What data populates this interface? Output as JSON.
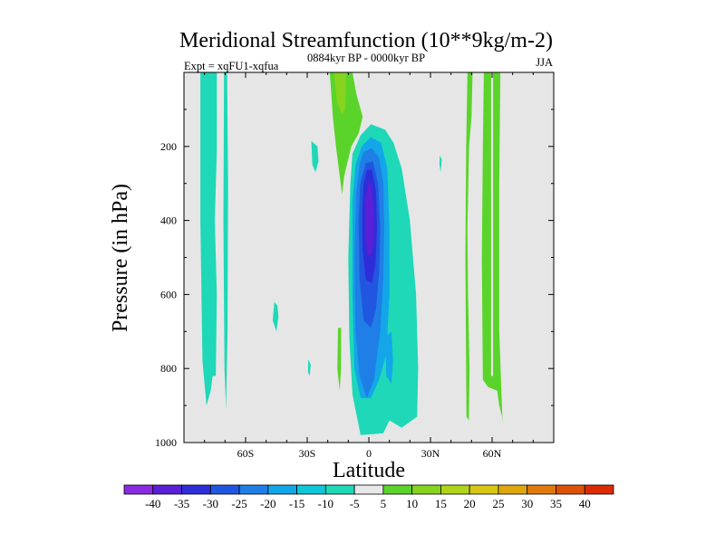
{
  "chart_data": {
    "type": "heatmap",
    "title": "Meridional Streamfunction (10**9kg/m-2)",
    "subtitle_left": "Expt = xqFU1-xqfua",
    "subtitle_center": "0884kyr BP - 0000kyr BP",
    "subtitle_right": "JJA",
    "xlabel": "Latitude",
    "ylabel": "Pressure (in hPa)",
    "xlim": [
      -90,
      90
    ],
    "ylim": [
      1000,
      0
    ],
    "x_ticks": [
      {
        "value": -60,
        "label": "60S"
      },
      {
        "value": -30,
        "label": "30S"
      },
      {
        "value": 0,
        "label": "0"
      },
      {
        "value": 30,
        "label": "30N"
      },
      {
        "value": 60,
        "label": "60N"
      }
    ],
    "y_ticks": [
      {
        "value": 200,
        "label": "200"
      },
      {
        "value": 400,
        "label": "400"
      },
      {
        "value": 600,
        "label": "600"
      },
      {
        "value": 800,
        "label": "800"
      },
      {
        "value": 1000,
        "label": "1000"
      }
    ],
    "background_color": "#e6e6e6",
    "colorbar": {
      "labels": [
        "-40",
        "-35",
        "-30",
        "-25",
        "-20",
        "-15",
        "-10",
        "-5",
        "5",
        "10",
        "15",
        "20",
        "25",
        "30",
        "35",
        "40"
      ],
      "colors": [
        "#8a2be2",
        "#5a1fd6",
        "#2e2ed9",
        "#2157e0",
        "#1f7fe6",
        "#13a6e8",
        "#10c6d8",
        "#1ed8b8",
        "#e8e8e8",
        "#5ad42a",
        "#86d41e",
        "#b0d41a",
        "#d8c814",
        "#e0a60f",
        "#e07a0c",
        "#dd5208",
        "#dc2c06"
      ]
    },
    "contour_regions": [
      {
        "name": "sh-polar-band",
        "level": -7,
        "color": "#1ed8b8",
        "polygon": [
          [
            -82,
            0
          ],
          [
            -74,
            0
          ],
          [
            -74,
            210
          ],
          [
            -75,
            400
          ],
          [
            -74,
            600
          ],
          [
            -74.5,
            820
          ],
          [
            -76,
            820
          ],
          [
            -77,
            860
          ],
          [
            -79,
            900
          ],
          [
            -81,
            780
          ],
          [
            -82,
            400
          ]
        ]
      },
      {
        "name": "sh-midlat-band",
        "level": -7,
        "color": "#1ed8b8",
        "polygon": [
          [
            -70.5,
            0
          ],
          [
            -69,
            0
          ],
          [
            -68.5,
            300
          ],
          [
            -68.8,
            700
          ],
          [
            -69.5,
            910
          ],
          [
            -70.3,
            800
          ],
          [
            -70.8,
            400
          ]
        ]
      },
      {
        "name": "sh-upper-blob",
        "level": -7,
        "color": "#1ed8b8",
        "polygon": [
          [
            -28,
            185
          ],
          [
            -25,
            200
          ],
          [
            -24.5,
            240
          ],
          [
            -26,
            270
          ],
          [
            -27.5,
            250
          ]
        ]
      },
      {
        "name": "sh-midlevel-blob",
        "level": -7,
        "color": "#1ed8b8",
        "polygon": [
          [
            -46,
            620
          ],
          [
            -44.5,
            630
          ],
          [
            -44,
            660
          ],
          [
            -45,
            700
          ],
          [
            -46.8,
            670
          ]
        ]
      },
      {
        "name": "sh-lowlevel-blob",
        "level": -7,
        "color": "#1ed8b8",
        "polygon": [
          [
            -29.5,
            775
          ],
          [
            -28.3,
            790
          ],
          [
            -28.8,
            820
          ],
          [
            -29.6,
            810
          ]
        ]
      },
      {
        "name": "nh-upper-blob",
        "level": -7,
        "color": "#1ed8b8",
        "polygon": [
          [
            34.5,
            225
          ],
          [
            35.5,
            235
          ],
          [
            35,
            270
          ],
          [
            34.4,
            250
          ]
        ]
      },
      {
        "name": "main-cell-outer",
        "level": -7,
        "color": "#1ed8b8",
        "polygon": [
          [
            -4,
            170
          ],
          [
            1,
            140
          ],
          [
            8,
            155
          ],
          [
            12,
            190
          ],
          [
            16,
            260
          ],
          [
            20,
            400
          ],
          [
            23,
            600
          ],
          [
            24,
            800
          ],
          [
            23.5,
            930
          ],
          [
            16,
            960
          ],
          [
            10,
            940
          ],
          [
            7,
            975
          ],
          [
            -4,
            980
          ],
          [
            -8,
            870
          ],
          [
            -9.5,
            720
          ],
          [
            -10,
            500
          ],
          [
            -9,
            300
          ],
          [
            -8,
            220
          ]
        ]
      },
      {
        "name": "main-cell-m10",
        "level": -12,
        "color": "#13a6e8",
        "polygon": [
          [
            -3.5,
            200
          ],
          [
            1,
            175
          ],
          [
            6,
            190
          ],
          [
            9,
            260
          ],
          [
            10,
            420
          ],
          [
            10,
            600
          ],
          [
            8.5,
            760
          ],
          [
            5,
            830
          ],
          [
            1,
            880
          ],
          [
            -4,
            880
          ],
          [
            -7,
            800
          ],
          [
            -8,
            600
          ],
          [
            -8,
            350
          ],
          [
            -6.5,
            250
          ]
        ]
      },
      {
        "name": "main-cell-m15",
        "level": -17,
        "color": "#1f7fe6",
        "polygon": [
          [
            -2.5,
            215
          ],
          [
            1.5,
            205
          ],
          [
            5,
            230
          ],
          [
            7,
            300
          ],
          [
            7.5,
            420
          ],
          [
            7,
            560
          ],
          [
            5.5,
            700
          ],
          [
            2.5,
            830
          ],
          [
            -1,
            880
          ],
          [
            -4.5,
            820
          ],
          [
            -6.5,
            700
          ],
          [
            -7,
            500
          ],
          [
            -6.2,
            330
          ],
          [
            -4.5,
            250
          ]
        ]
      },
      {
        "name": "main-cell-m20",
        "level": -22,
        "color": "#2157e0",
        "polygon": [
          [
            -1.5,
            245
          ],
          [
            2,
            240
          ],
          [
            4.5,
            300
          ],
          [
            5.5,
            420
          ],
          [
            5,
            540
          ],
          [
            3.5,
            640
          ],
          [
            1,
            690
          ],
          [
            -2.5,
            670
          ],
          [
            -4.5,
            560
          ],
          [
            -5,
            400
          ],
          [
            -4.2,
            300
          ]
        ]
      },
      {
        "name": "main-cell-m25",
        "level": -27,
        "color": "#2e2ed9",
        "polygon": [
          [
            -1,
            265
          ],
          [
            1.5,
            262
          ],
          [
            3.5,
            320
          ],
          [
            4,
            420
          ],
          [
            3.2,
            520
          ],
          [
            1.5,
            570
          ],
          [
            -1.5,
            560
          ],
          [
            -3,
            480
          ],
          [
            -3.2,
            380
          ],
          [
            -2.5,
            300
          ]
        ]
      },
      {
        "name": "main-cell-m30",
        "level": -32,
        "color": "#5a1fd6",
        "polygon": [
          [
            -0.5,
            300
          ],
          [
            1,
            300
          ],
          [
            2.3,
            360
          ],
          [
            2.5,
            440
          ],
          [
            1.5,
            490
          ],
          [
            -0.5,
            495
          ],
          [
            -1.8,
            440
          ],
          [
            -1.8,
            350
          ]
        ]
      },
      {
        "name": "hook-south",
        "level": -12,
        "color": "#13a6e8",
        "polygon": [
          [
            8,
            715
          ],
          [
            11,
            700
          ],
          [
            11.8,
            780
          ],
          [
            11,
            840
          ],
          [
            8.5,
            820
          ]
        ]
      },
      {
        "name": "upper-green-column",
        "level": 7,
        "color": "#5ad42a",
        "polygon": [
          [
            -19,
            0
          ],
          [
            -8,
            0
          ],
          [
            -6,
            60
          ],
          [
            -3,
            120
          ],
          [
            -5,
            165
          ],
          [
            -8.5,
            200
          ],
          [
            -12,
            280
          ],
          [
            -13,
            330
          ],
          [
            -16,
            200
          ],
          [
            -17.5,
            120
          ]
        ]
      },
      {
        "name": "upper-green-core",
        "level": 12,
        "color": "#86d41e",
        "polygon": [
          [
            -17,
            0
          ],
          [
            -11,
            0
          ],
          [
            -11.5,
            100
          ],
          [
            -13,
            115
          ],
          [
            -15.5,
            80
          ]
        ]
      },
      {
        "name": "sh-lower-green",
        "level": 7,
        "color": "#5ad42a",
        "polygon": [
          [
            -15,
            690
          ],
          [
            -13.5,
            690
          ],
          [
            -13.5,
            800
          ],
          [
            -14.2,
            860
          ],
          [
            -15.3,
            800
          ]
        ]
      },
      {
        "name": "nh-band-1",
        "level": 7,
        "color": "#5ad42a",
        "polygon": [
          [
            48,
            0
          ],
          [
            50.5,
            0
          ],
          [
            50,
            120
          ],
          [
            48.8,
            200
          ],
          [
            48,
            420
          ],
          [
            48.3,
            600
          ],
          [
            49,
            800
          ],
          [
            48.7,
            940
          ],
          [
            47.5,
            930
          ],
          [
            47,
            500
          ],
          [
            47.4,
            200
          ]
        ]
      },
      {
        "name": "nh-band-2",
        "level": 7,
        "color": "#5ad42a",
        "polygon": [
          [
            56,
            0
          ],
          [
            64,
            0
          ],
          [
            63.5,
            300
          ],
          [
            63.5,
            700
          ],
          [
            65,
            930
          ],
          [
            65.5,
            945
          ],
          [
            63.5,
            900
          ],
          [
            62.5,
            860
          ],
          [
            58,
            850
          ],
          [
            55.5,
            830
          ],
          [
            55,
            500
          ],
          [
            55.5,
            200
          ]
        ]
      },
      {
        "name": "nh-band-2-gap",
        "level": 0,
        "color": "#e6e6e6",
        "polygon": [
          [
            59.5,
            0
          ],
          [
            60.5,
            0
          ],
          [
            60.5,
            820
          ],
          [
            59.5,
            820
          ]
        ]
      }
    ]
  }
}
